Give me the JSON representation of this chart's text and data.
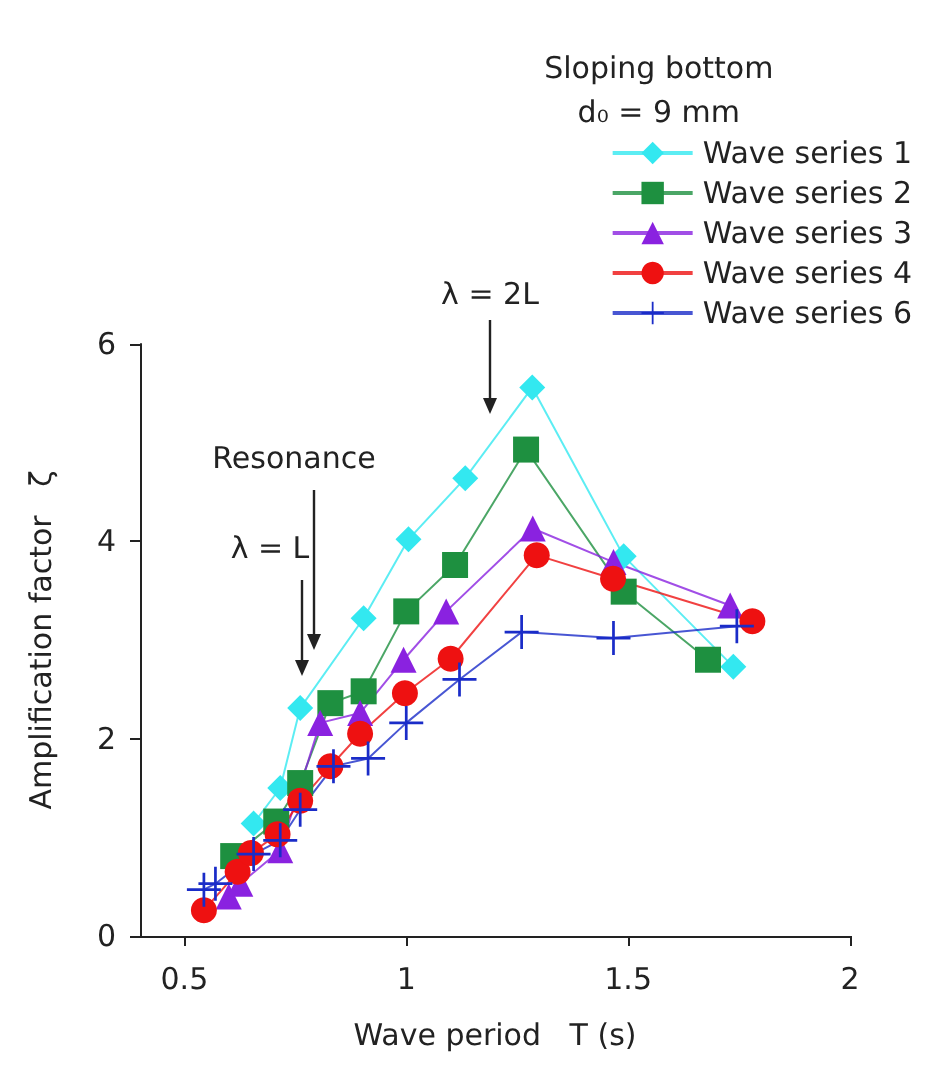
{
  "chart_data": {
    "type": "line",
    "xlabel": "Wave period   T (s)",
    "ylabel": "Amplification factor   ζ",
    "legend_title": "Sloping bottom\nd₀ = 9 mm",
    "legend": "top right",
    "grid": false,
    "xlim": [
      0.4,
      2
    ],
    "xticks": [
      0.5,
      1,
      1.5,
      2
    ],
    "ylim": [
      0,
      6
    ],
    "yticks": [
      0,
      2,
      4,
      6
    ],
    "annotations": [
      "λ = 2L",
      "Resonance",
      "λ = L"
    ],
    "series": [
      {
        "name": "Wave series 1",
        "color": "#33e8f0",
        "marker": "diamond",
        "x": [
          0.656,
          0.716,
          0.761,
          0.904,
          1.005,
          1.133,
          1.284,
          1.49,
          1.737
        ],
        "values": [
          1.14,
          1.5,
          2.31,
          3.22,
          4.02,
          4.64,
          5.56,
          3.85,
          2.73
        ]
      },
      {
        "name": "Wave series 2",
        "color": "#1e9040",
        "marker": "square",
        "x": [
          0.61,
          0.707,
          0.761,
          0.829,
          0.904,
          1.0,
          1.11,
          1.27,
          1.49,
          1.68
        ],
        "values": [
          0.81,
          1.16,
          1.55,
          2.36,
          2.48,
          3.29,
          3.76,
          4.93,
          3.49,
          2.8
        ]
      },
      {
        "name": "Wave series 3",
        "color": "#8a22e0",
        "marker": "triangle",
        "x": [
          0.6,
          0.626,
          0.716,
          0.806,
          0.896,
          0.994,
          1.09,
          1.285,
          1.467,
          1.73
        ],
        "values": [
          0.4,
          0.53,
          0.87,
          2.16,
          2.26,
          2.8,
          3.29,
          4.13,
          3.79,
          3.35
        ]
      },
      {
        "name": "Wave series 4",
        "color": "#ee1111",
        "marker": "circle",
        "x": [
          0.544,
          0.62,
          0.65,
          0.71,
          0.761,
          0.829,
          0.896,
          0.997,
          1.1,
          1.294,
          1.466,
          1.78
        ],
        "values": [
          0.26,
          0.65,
          0.84,
          1.03,
          1.37,
          1.72,
          2.05,
          2.46,
          2.81,
          3.86,
          3.62,
          3.19
        ]
      },
      {
        "name": "Wave series 6",
        "color": "#1a2cc8",
        "marker": "cross",
        "x": [
          0.544,
          0.57,
          0.656,
          0.716,
          0.761,
          0.836,
          0.914,
          1.0,
          1.12,
          1.26,
          1.467,
          1.745
        ],
        "values": [
          0.47,
          0.53,
          0.83,
          0.97,
          1.28,
          1.72,
          1.8,
          2.16,
          2.6,
          3.08,
          3.02,
          3.14
        ]
      }
    ]
  }
}
